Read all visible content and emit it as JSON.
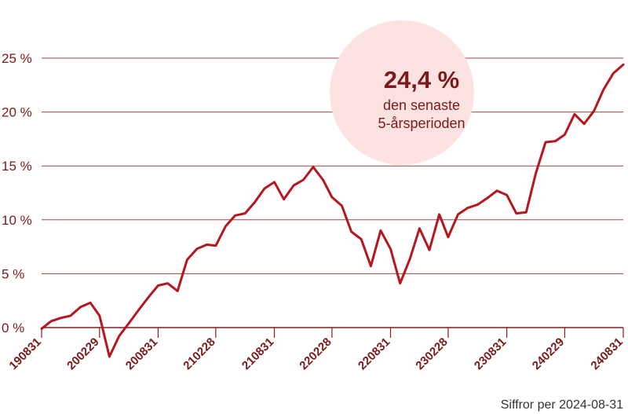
{
  "chart_data": {
    "type": "line",
    "y_unit": "%",
    "ylim": [
      0,
      25
    ],
    "y_ticks": [
      0,
      5,
      10,
      15,
      20,
      25
    ],
    "y_tick_labels": [
      "0 %",
      "5 %",
      "10 %",
      "15 %",
      "20 %",
      "25 %"
    ],
    "x_ticks": [
      "190831",
      "200229",
      "200831",
      "210228",
      "210831",
      "220228",
      "220831",
      "230228",
      "230831",
      "240229",
      "240831"
    ],
    "grid": true,
    "series": [
      {
        "color": "#b5171e",
        "x": [
          "2019-08-31",
          "2019-09-30",
          "2019-10-31",
          "2019-11-30",
          "2019-12-31",
          "2020-01-31",
          "2020-02-29",
          "2020-03-31",
          "2020-04-30",
          "2020-05-31",
          "2020-06-30",
          "2020-07-31",
          "2020-08-31",
          "2020-09-30",
          "2020-10-31",
          "2020-11-30",
          "2020-12-31",
          "2021-01-31",
          "2021-02-28",
          "2021-03-31",
          "2021-04-30",
          "2021-05-31",
          "2021-06-30",
          "2021-07-31",
          "2021-08-31",
          "2021-09-30",
          "2021-10-31",
          "2021-11-30",
          "2021-12-31",
          "2022-01-31",
          "2022-02-28",
          "2022-03-31",
          "2022-04-30",
          "2022-05-31",
          "2022-06-30",
          "2022-07-31",
          "2022-08-31",
          "2022-09-30",
          "2022-10-31",
          "2022-11-30",
          "2022-12-31",
          "2023-01-31",
          "2023-02-28",
          "2023-03-31",
          "2023-04-30",
          "2023-05-31",
          "2023-06-30",
          "2023-07-31",
          "2023-08-31",
          "2023-09-30",
          "2023-10-31",
          "2023-11-30",
          "2023-12-31",
          "2024-01-31",
          "2024-02-29",
          "2024-03-31",
          "2024-04-30",
          "2024-05-31",
          "2024-06-30",
          "2024-07-31",
          "2024-08-31"
        ],
        "values": [
          -0.1,
          0.6,
          0.9,
          1.1,
          1.9,
          2.3,
          1.1,
          -2.7,
          -0.8,
          0.4,
          1.6,
          2.8,
          3.9,
          4.1,
          3.4,
          6.3,
          7.3,
          7.7,
          7.6,
          9.4,
          10.4,
          10.6,
          11.6,
          12.9,
          13.5,
          11.9,
          13.2,
          13.7,
          14.9,
          13.7,
          12.1,
          11.3,
          8.9,
          8.2,
          5.7,
          9.0,
          7.3,
          4.1,
          6.4,
          9.2,
          7.2,
          10.5,
          8.4,
          10.5,
          11.1,
          11.4,
          12.0,
          12.7,
          12.3,
          10.6,
          10.7,
          14.3,
          17.2,
          17.3,
          17.9,
          19.8,
          18.9,
          20.1,
          22.1,
          23.6,
          24.4
        ]
      }
    ]
  },
  "callout": {
    "value": "24,4 %",
    "line1": "den senaste",
    "line2": "5-årsperioden",
    "bg_color": "#fde2e2"
  },
  "footer": "Siffror per 2024-08-31"
}
